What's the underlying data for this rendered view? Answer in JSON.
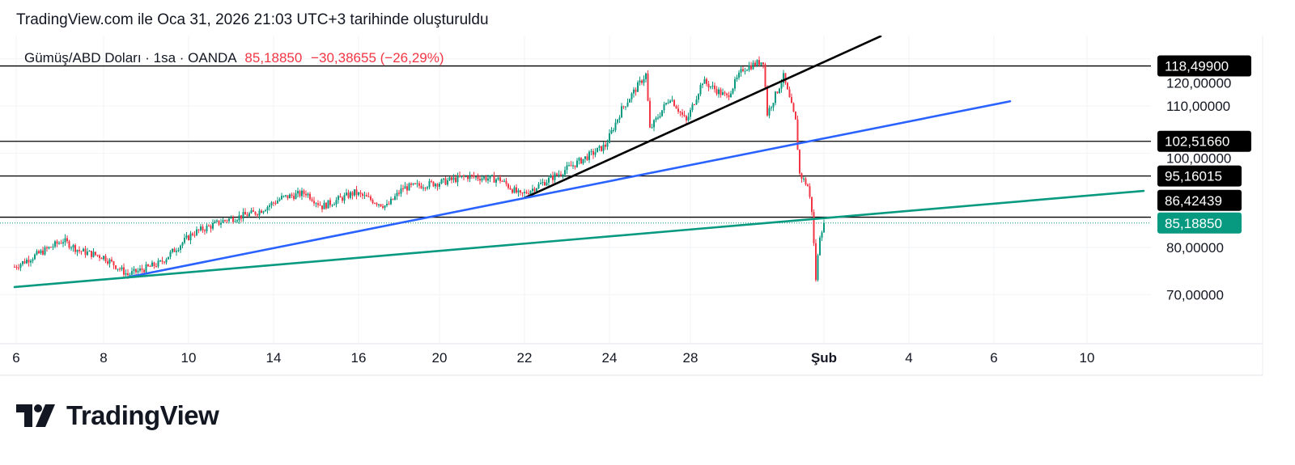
{
  "header": {
    "caption": "TradingView.com ile Oca 31, 2026 21:03 UTC+3 tarihinde oluşturuldu"
  },
  "legend": {
    "symbol": "Gümüş/ABD Doları · 1sa · OANDA",
    "last": "85,18850",
    "change": "−30,38655 (−26,29%)"
  },
  "brand": {
    "name": "TradingView"
  },
  "colors": {
    "up": "#089981",
    "down": "#f23645",
    "blue": "#2962ff",
    "green": "#089981",
    "black": "#000000"
  },
  "chart_data": {
    "type": "candlestick",
    "title": "Gümüş/ABD Doları · 1sa · OANDA",
    "ylim": [
      63,
      125
    ],
    "xlim": [
      0,
      282
    ],
    "x_unit": "bar index",
    "price_ticks": [
      {
        "value": 120,
        "label": "120,00000"
      },
      {
        "value": 110,
        "label": "110,00000"
      },
      {
        "value": 100,
        "label": "100,00000"
      },
      {
        "value": 80,
        "label": "80,00000"
      },
      {
        "value": 70,
        "label": "70,00000"
      }
    ],
    "time_ticks": [
      {
        "x": 0.4,
        "label": "6"
      },
      {
        "x": 22,
        "label": "8"
      },
      {
        "x": 43,
        "label": "10"
      },
      {
        "x": 64,
        "label": "14"
      },
      {
        "x": 85,
        "label": "16"
      },
      {
        "x": 105,
        "label": "20"
      },
      {
        "x": 126,
        "label": "22"
      },
      {
        "x": 147,
        "label": "24"
      },
      {
        "x": 167,
        "label": "28"
      },
      {
        "x": 200,
        "label": "Şub"
      },
      {
        "x": 221,
        "label": "4"
      },
      {
        "x": 242,
        "label": "6"
      },
      {
        "x": 265,
        "label": "10"
      }
    ],
    "price_path": [
      [
        0,
        75.9
      ],
      [
        12,
        81.5
      ],
      [
        16,
        79.3
      ],
      [
        22,
        78
      ],
      [
        28,
        74.2
      ],
      [
        36,
        76.7
      ],
      [
        44,
        83
      ],
      [
        52,
        85.8
      ],
      [
        60,
        87.5
      ],
      [
        66,
        90.5
      ],
      [
        72,
        91.6
      ],
      [
        76,
        88.7
      ],
      [
        84,
        91.6
      ],
      [
        92,
        88.7
      ],
      [
        96,
        92.6
      ],
      [
        106,
        93.9
      ],
      [
        112,
        95.1
      ],
      [
        120,
        94.4
      ],
      [
        125,
        91
      ],
      [
        132,
        94.4
      ],
      [
        140,
        98.5
      ],
      [
        146,
        101.6
      ],
      [
        150,
        109.3
      ],
      [
        156,
        116.7
      ],
      [
        157,
        105
      ],
      [
        162,
        111.9
      ],
      [
        166,
        106.7
      ],
      [
        170,
        115.3
      ],
      [
        176,
        111.9
      ],
      [
        180,
        117.9
      ],
      [
        185,
        119.6
      ],
      [
        186,
        108.4
      ],
      [
        190,
        116.2
      ],
      [
        193,
        106.7
      ],
      [
        194,
        95.6
      ],
      [
        196,
        93
      ],
      [
        197,
        87.9
      ],
      [
        198,
        73.3
      ],
      [
        199,
        82.7
      ],
      [
        200,
        85.2
      ]
    ],
    "horizontal_levels": [
      {
        "value": 118.499,
        "label": "118,49900"
      },
      {
        "value": 102.5166,
        "label": "102,51660"
      },
      {
        "value": 95.16015,
        "label": "95,16015"
      },
      {
        "value": 86.42439,
        "label": "86,42439"
      }
    ],
    "last_price": {
      "value": 85.1885,
      "label": "85,18850"
    },
    "trendlines": [
      {
        "name": "black",
        "from": [
          126,
          90.5
        ],
        "to": [
          214,
          124.8
        ]
      },
      {
        "name": "blue",
        "from": [
          28,
          73.7
        ],
        "to": [
          246,
          111.0
        ]
      },
      {
        "name": "green",
        "from": [
          0,
          71.6
        ],
        "to": [
          279,
          92.0
        ]
      }
    ]
  }
}
